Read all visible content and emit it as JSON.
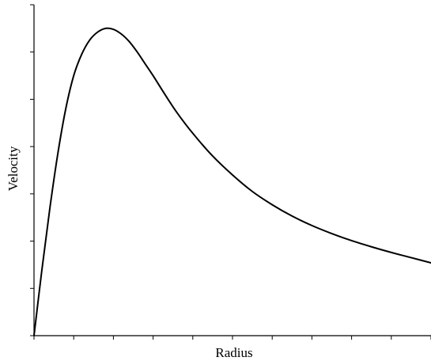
{
  "chart_data": {
    "type": "line",
    "title": "",
    "xlabel": "Radius",
    "ylabel": "Velocity",
    "grid": false,
    "legend": "none",
    "x_ticks": 10,
    "y_ticks": 7,
    "xlim": [
      0,
      10
    ],
    "ylim": [
      0,
      7
    ],
    "series": [
      {
        "x": [
          0,
          0.2,
          0.4,
          0.6,
          0.8,
          1.0,
          1.2,
          1.4,
          1.6,
          1.8,
          2.0,
          2.2,
          2.4,
          2.6,
          2.8,
          3.0,
          3.3,
          3.6,
          4.0,
          4.5,
          5.0,
          5.5,
          6.0,
          6.5,
          7.0,
          7.5,
          8.0,
          8.5,
          9.0,
          9.5,
          10.0
        ],
        "y": [
          0,
          1.4,
          2.7,
          3.85,
          4.8,
          5.5,
          5.95,
          6.25,
          6.42,
          6.5,
          6.48,
          6.38,
          6.22,
          6.0,
          5.75,
          5.5,
          5.1,
          4.72,
          4.28,
          3.8,
          3.4,
          3.05,
          2.77,
          2.53,
          2.33,
          2.16,
          2.01,
          1.88,
          1.76,
          1.65,
          1.54
        ]
      }
    ]
  }
}
